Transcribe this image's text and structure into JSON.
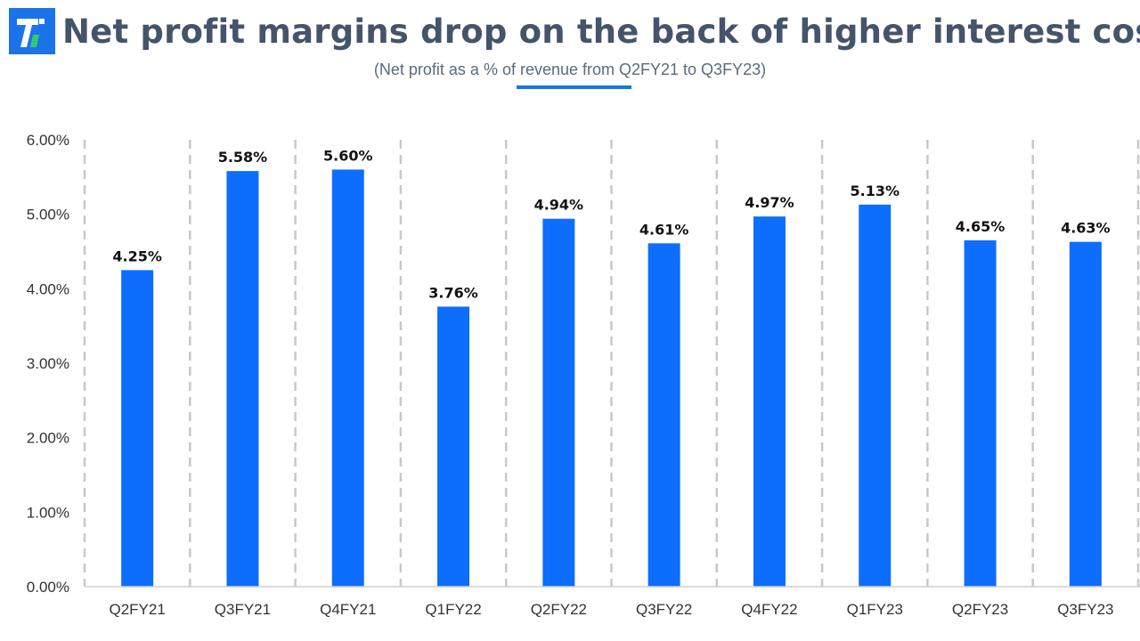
{
  "header": {
    "title": "Net profit margins drop on the back of higher interest costs",
    "subtitle": "(Net profit as a % of revenue from Q2FY21 to Q3FY23)"
  },
  "logo": {
    "glyph": "7",
    "bg_color": "#1a73e8",
    "accent_color": "#2ecc71"
  },
  "chart_data": {
    "type": "bar",
    "categories": [
      "Q2FY21",
      "Q3FY21",
      "Q4FY21",
      "Q1FY22",
      "Q2FY22",
      "Q3FY22",
      "Q4FY22",
      "Q1FY23",
      "Q2FY23",
      "Q3FY23"
    ],
    "values": [
      4.25,
      5.58,
      5.6,
      3.76,
      4.94,
      4.61,
      4.97,
      5.13,
      4.65,
      4.63
    ],
    "data_labels": [
      "4.25%",
      "5.58%",
      "5.60%",
      "3.76%",
      "4.94%",
      "4.61%",
      "4.97%",
      "5.13%",
      "4.65%",
      "4.63%"
    ],
    "ylim": [
      0,
      6
    ],
    "yticks": [
      "0.00%",
      "1.00%",
      "2.00%",
      "3.00%",
      "4.00%",
      "5.00%",
      "6.00%"
    ],
    "bar_color": "#0d6efd",
    "grid": "vertical dashed separators",
    "xlabel": "",
    "ylabel": ""
  }
}
